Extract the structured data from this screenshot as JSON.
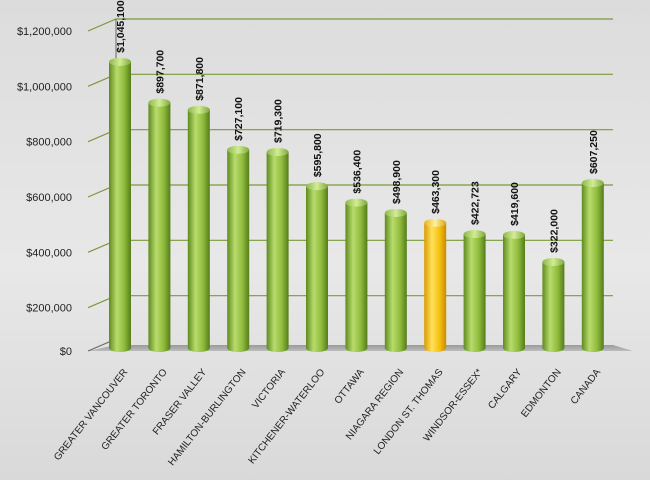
{
  "chart_data": {
    "type": "bar",
    "title": "",
    "xlabel": "",
    "ylabel": "",
    "categories": [
      "GREATER VANCOUVER",
      "GREATER TORONTO",
      "FRASER VALLEY",
      "HAMILTON-BURLINGTON",
      "VICTORIA",
      "KITCHENER-WATERLOO",
      "OTTAWA",
      "NIAGARA REGION",
      "LONDON ST. THOMAS",
      "WINDSOR-ESSEX*",
      "CALGARY",
      "EDMONTON",
      "CANADA"
    ],
    "values": [
      1045100,
      897700,
      871800,
      727100,
      719300,
      595800,
      536400,
      498900,
      463300,
      422723,
      419600,
      322000,
      607250
    ],
    "data_labels": [
      "$1,045,100",
      "$897,700",
      "$871,800",
      "$727,100",
      "$719,300",
      "$595,800",
      "$536,400",
      "$498,900",
      "$463,300",
      "$422,723",
      "$419,600",
      "$322,000",
      "$607,250"
    ],
    "y_ticks": [
      "$0",
      "$200,000",
      "$400,000",
      "$600,000",
      "$800,000",
      "$1,000,000",
      "$1,200,000"
    ],
    "ylim": [
      0,
      1200000
    ],
    "grid": true,
    "highlight_category": "LONDON ST. THOMAS",
    "colors": {
      "bar": "#8fb83e",
      "highlight": "#f2b705",
      "grid": "#7a9a3a"
    }
  }
}
